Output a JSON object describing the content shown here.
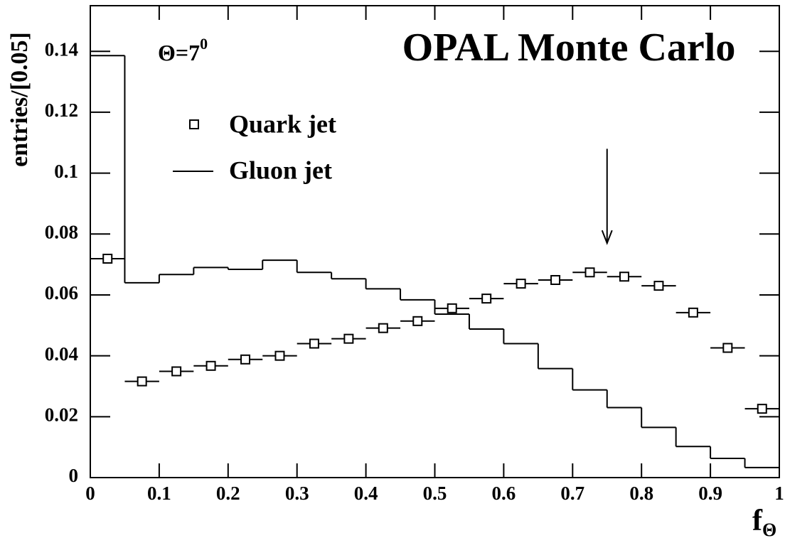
{
  "chart_data": {
    "type": "histogram",
    "title": "OPAL Monte Carlo",
    "theta_label": {
      "text": "Θ=7",
      "sup": "0"
    },
    "y_label": "entries/[0.05]",
    "x_label": {
      "text": "f",
      "sub": "Θ"
    },
    "xlim": [
      0,
      1
    ],
    "ylim": [
      0,
      0.155
    ],
    "xticks": [
      0,
      0.1,
      0.2,
      0.3,
      0.4,
      0.5,
      0.6,
      0.7,
      0.8,
      0.9,
      1
    ],
    "yticks": [
      0,
      0.02,
      0.04,
      0.06,
      0.08,
      0.1,
      0.12,
      0.14
    ],
    "arrow": {
      "x": 0.75,
      "y_from": 0.108,
      "y_to": 0.077
    },
    "series": [
      {
        "name": "Quark jet",
        "color": "#000000",
        "kind": "points",
        "xerr": 0.025,
        "x": [
          0.025,
          0.075,
          0.125,
          0.175,
          0.225,
          0.275,
          0.325,
          0.375,
          0.425,
          0.475,
          0.525,
          0.575,
          0.625,
          0.675,
          0.725,
          0.775,
          0.825,
          0.875,
          0.925,
          0.975
        ],
        "values": [
          0.0719,
          0.0316,
          0.0349,
          0.0367,
          0.0388,
          0.04,
          0.044,
          0.0456,
          0.0491,
          0.0514,
          0.0556,
          0.0588,
          0.0637,
          0.0649,
          0.0674,
          0.066,
          0.063,
          0.0542,
          0.0426,
          0.0226
        ]
      },
      {
        "name": "Gluon jet",
        "color": "#000000",
        "kind": "steps",
        "bins": [
          0,
          0.05,
          0.1,
          0.15,
          0.2,
          0.25,
          0.3,
          0.35,
          0.4,
          0.45,
          0.5,
          0.55,
          0.6,
          0.65,
          0.7,
          0.75,
          0.8,
          0.85,
          0.9,
          0.95,
          1
        ],
        "values": [
          0.1386,
          0.064,
          0.0667,
          0.069,
          0.0684,
          0.0714,
          0.0674,
          0.0653,
          0.062,
          0.0584,
          0.0537,
          0.0488,
          0.044,
          0.0358,
          0.0288,
          0.023,
          0.0165,
          0.0102,
          0.0063,
          0.0033
        ]
      }
    ]
  }
}
